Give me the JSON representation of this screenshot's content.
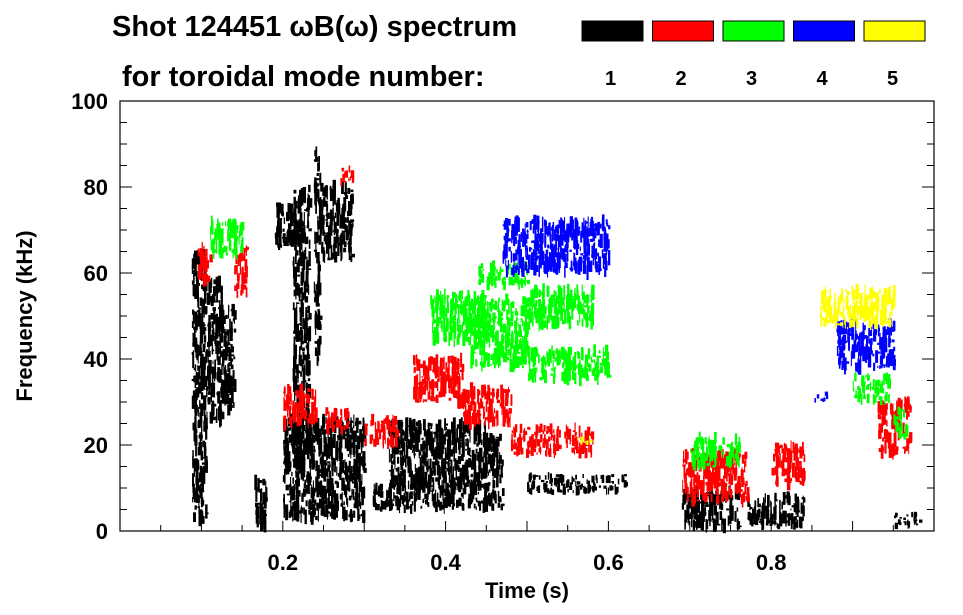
{
  "chart_data": {
    "type": "scatter",
    "title": "Shot 124451 ωB(ω) spectrum",
    "subtitle": "for toroidal mode number:",
    "xlabel": "Time (s)",
    "ylabel": "Frequency (kHz)",
    "xlim": [
      0.0,
      1.0
    ],
    "ylim": [
      0,
      100
    ],
    "x_ticks": [
      0.2,
      0.4,
      0.6,
      0.8
    ],
    "x_tick_labels": [
      "0.2",
      "0.4",
      "0.6",
      "0.8"
    ],
    "y_ticks": [
      0,
      20,
      40,
      60,
      80,
      100
    ],
    "y_tick_labels": [
      "0",
      "20",
      "40",
      "60",
      "80",
      "100"
    ],
    "legend": [
      {
        "label": "1",
        "color": "#000000"
      },
      {
        "label": "2",
        "color": "#ff0000"
      },
      {
        "label": "3",
        "color": "#00ff00"
      },
      {
        "label": "4",
        "color": "#0000ff"
      },
      {
        "label": "5",
        "color": "#ffff00"
      }
    ],
    "series": [
      {
        "name": "n=1",
        "color": "#000000",
        "blobs": [
          {
            "t0": 0.088,
            "t1": 0.105,
            "f0": 2,
            "f1": 65
          },
          {
            "t0": 0.105,
            "t1": 0.125,
            "f0": 25,
            "f1": 58
          },
          {
            "t0": 0.125,
            "t1": 0.14,
            "f0": 28,
            "f1": 52
          },
          {
            "t0": 0.165,
            "t1": 0.18,
            "f0": 1,
            "f1": 12
          },
          {
            "t0": 0.19,
            "t1": 0.215,
            "f0": 66,
            "f1": 76
          },
          {
            "t0": 0.212,
            "t1": 0.232,
            "f0": 15,
            "f1": 80
          },
          {
            "t0": 0.238,
            "t1": 0.245,
            "f0": 40,
            "f1": 88
          },
          {
            "t0": 0.245,
            "t1": 0.285,
            "f0": 63,
            "f1": 80
          },
          {
            "t0": 0.2,
            "t1": 0.3,
            "f0": 3,
            "f1": 26
          },
          {
            "t0": 0.33,
            "t1": 0.45,
            "f0": 10,
            "f1": 25
          },
          {
            "t0": 0.45,
            "t1": 0.47,
            "f0": 12,
            "f1": 22
          },
          {
            "t0": 0.31,
            "t1": 0.47,
            "f0": 5,
            "f1": 11
          },
          {
            "t0": 0.5,
            "t1": 0.62,
            "f0": 9,
            "f1": 13
          },
          {
            "t0": 0.69,
            "t1": 0.76,
            "f0": 1,
            "f1": 9
          },
          {
            "t0": 0.77,
            "t1": 0.84,
            "f0": 1,
            "f1": 8
          },
          {
            "t0": 0.95,
            "t1": 0.985,
            "f0": 1,
            "f1": 4
          }
        ]
      },
      {
        "name": "n=2",
        "color": "#ff0000",
        "blobs": [
          {
            "t0": 0.095,
            "t1": 0.11,
            "f0": 58,
            "f1": 66
          },
          {
            "t0": 0.14,
            "t1": 0.155,
            "f0": 55,
            "f1": 66
          },
          {
            "t0": 0.2,
            "t1": 0.24,
            "f0": 25,
            "f1": 33
          },
          {
            "t0": 0.25,
            "t1": 0.28,
            "f0": 23,
            "f1": 28
          },
          {
            "t0": 0.27,
            "t1": 0.285,
            "f0": 81,
            "f1": 85
          },
          {
            "t0": 0.3,
            "t1": 0.34,
            "f0": 20,
            "f1": 26
          },
          {
            "t0": 0.36,
            "t1": 0.42,
            "f0": 30,
            "f1": 40
          },
          {
            "t0": 0.42,
            "t1": 0.48,
            "f0": 25,
            "f1": 33
          },
          {
            "t0": 0.48,
            "t1": 0.58,
            "f0": 18,
            "f1": 24
          },
          {
            "t0": 0.69,
            "t1": 0.77,
            "f0": 7,
            "f1": 18
          },
          {
            "t0": 0.8,
            "t1": 0.84,
            "f0": 11,
            "f1": 20
          },
          {
            "t0": 0.93,
            "t1": 0.97,
            "f0": 18,
            "f1": 30
          }
        ]
      },
      {
        "name": "n=3",
        "color": "#00ff00",
        "blobs": [
          {
            "t0": 0.11,
            "t1": 0.15,
            "f0": 64,
            "f1": 72
          },
          {
            "t0": 0.38,
            "t1": 0.45,
            "f0": 44,
            "f1": 55
          },
          {
            "t0": 0.43,
            "t1": 0.5,
            "f0": 38,
            "f1": 48
          },
          {
            "t0": 0.44,
            "t1": 0.5,
            "f0": 57,
            "f1": 62
          },
          {
            "t0": 0.5,
            "t1": 0.58,
            "f0": 48,
            "f1": 56
          },
          {
            "t0": 0.42,
            "t1": 0.5,
            "f0": 48,
            "f1": 54
          },
          {
            "t0": 0.5,
            "t1": 0.6,
            "f0": 35,
            "f1": 42
          },
          {
            "t0": 0.7,
            "t1": 0.76,
            "f0": 15,
            "f1": 22
          },
          {
            "t0": 0.9,
            "t1": 0.945,
            "f0": 30,
            "f1": 36
          },
          {
            "t0": 0.95,
            "t1": 0.965,
            "f0": 22,
            "f1": 28
          }
        ]
      },
      {
        "name": "n=4",
        "color": "#0000ff",
        "blobs": [
          {
            "t0": 0.47,
            "t1": 0.6,
            "f0": 60,
            "f1": 72
          },
          {
            "t0": 0.88,
            "t1": 0.95,
            "f0": 38,
            "f1": 48
          },
          {
            "t0": 0.85,
            "t1": 0.87,
            "f0": 30,
            "f1": 32
          }
        ]
      },
      {
        "name": "n=5",
        "color": "#ffff00",
        "blobs": [
          {
            "t0": 0.86,
            "t1": 0.95,
            "f0": 48,
            "f1": 56
          },
          {
            "t0": 0.56,
            "t1": 0.58,
            "f0": 20,
            "f1": 22
          }
        ]
      }
    ]
  }
}
